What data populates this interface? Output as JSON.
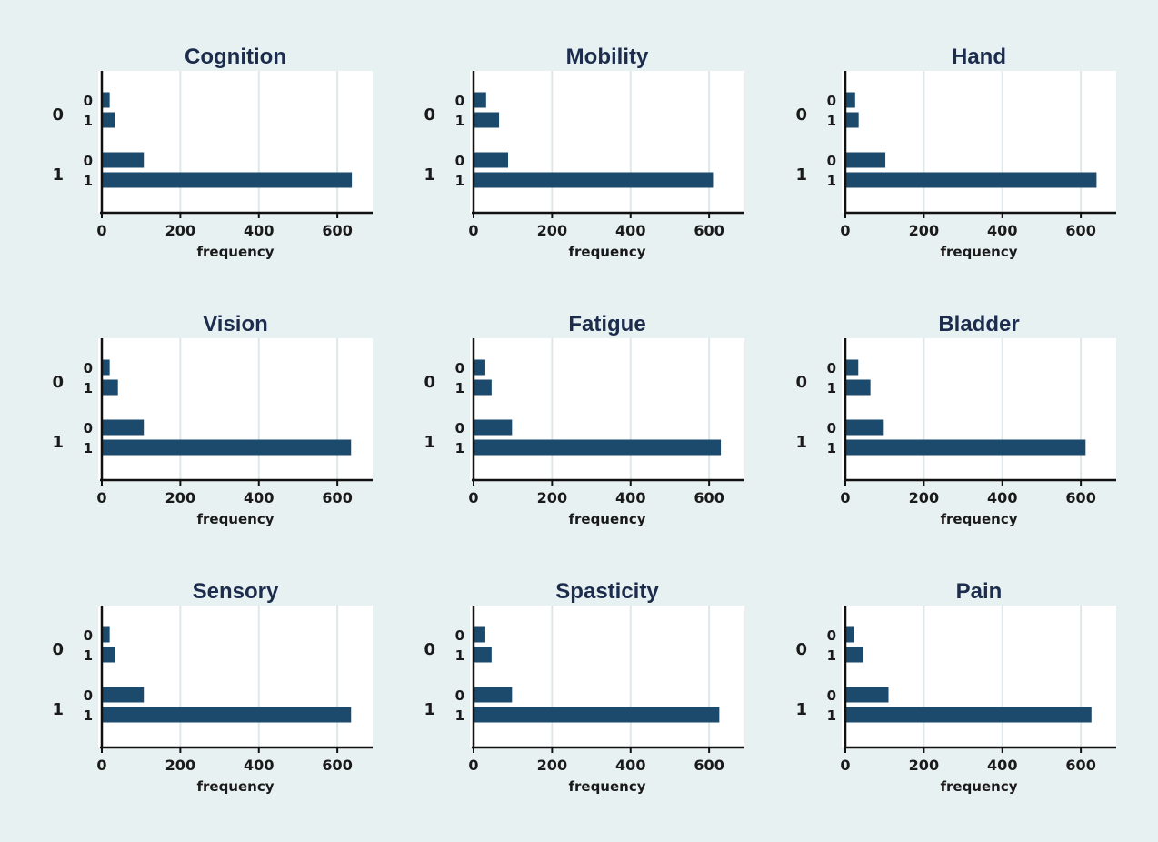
{
  "chart_data": [
    {
      "type": "bar",
      "orientation": "horizontal",
      "title": "Cognition",
      "xlabel": "frequency",
      "xlim": [
        0,
        690
      ],
      "xticks": [
        0,
        200,
        400,
        600
      ],
      "grid": true,
      "groups": [
        {
          "label": "0",
          "bars": [
            {
              "label": "0",
              "value": 20
            },
            {
              "label": "1",
              "value": 33
            }
          ]
        },
        {
          "label": "1",
          "bars": [
            {
              "label": "0",
              "value": 107
            },
            {
              "label": "1",
              "value": 637
            }
          ]
        }
      ]
    },
    {
      "type": "bar",
      "orientation": "horizontal",
      "title": "Mobility",
      "xlabel": "frequency",
      "xlim": [
        0,
        690
      ],
      "xticks": [
        0,
        200,
        400,
        600
      ],
      "grid": true,
      "groups": [
        {
          "label": "0",
          "bars": [
            {
              "label": "0",
              "value": 32
            },
            {
              "label": "1",
              "value": 65
            }
          ]
        },
        {
          "label": "1",
          "bars": [
            {
              "label": "0",
              "value": 88
            },
            {
              "label": "1",
              "value": 610
            }
          ]
        }
      ]
    },
    {
      "type": "bar",
      "orientation": "horizontal",
      "title": "Hand",
      "xlabel": "frequency",
      "xlim": [
        0,
        690
      ],
      "xticks": [
        0,
        200,
        400,
        600
      ],
      "grid": true,
      "groups": [
        {
          "label": "0",
          "bars": [
            {
              "label": "0",
              "value": 25
            },
            {
              "label": "1",
              "value": 34
            }
          ]
        },
        {
          "label": "1",
          "bars": [
            {
              "label": "0",
              "value": 102
            },
            {
              "label": "1",
              "value": 640
            }
          ]
        }
      ]
    },
    {
      "type": "bar",
      "orientation": "horizontal",
      "title": "Vision",
      "xlabel": "frequency",
      "xlim": [
        0,
        690
      ],
      "xticks": [
        0,
        200,
        400,
        600
      ],
      "grid": true,
      "groups": [
        {
          "label": "0",
          "bars": [
            {
              "label": "0",
              "value": 20
            },
            {
              "label": "1",
              "value": 41
            }
          ]
        },
        {
          "label": "1",
          "bars": [
            {
              "label": "0",
              "value": 107
            },
            {
              "label": "1",
              "value": 635
            }
          ]
        }
      ]
    },
    {
      "type": "bar",
      "orientation": "horizontal",
      "title": "Fatigue",
      "xlabel": "frequency",
      "xlim": [
        0,
        690
      ],
      "xticks": [
        0,
        200,
        400,
        600
      ],
      "grid": true,
      "groups": [
        {
          "label": "0",
          "bars": [
            {
              "label": "0",
              "value": 30
            },
            {
              "label": "1",
              "value": 46
            }
          ]
        },
        {
          "label": "1",
          "bars": [
            {
              "label": "0",
              "value": 98
            },
            {
              "label": "1",
              "value": 630
            }
          ]
        }
      ]
    },
    {
      "type": "bar",
      "orientation": "horizontal",
      "title": "Bladder",
      "xlabel": "frequency",
      "xlim": [
        0,
        690
      ],
      "xticks": [
        0,
        200,
        400,
        600
      ],
      "grid": true,
      "groups": [
        {
          "label": "0",
          "bars": [
            {
              "label": "0",
              "value": 33
            },
            {
              "label": "1",
              "value": 64
            }
          ]
        },
        {
          "label": "1",
          "bars": [
            {
              "label": "0",
              "value": 98
            },
            {
              "label": "1",
              "value": 612
            }
          ]
        }
      ]
    },
    {
      "type": "bar",
      "orientation": "horizontal",
      "title": "Sensory",
      "xlabel": "frequency",
      "xlim": [
        0,
        690
      ],
      "xticks": [
        0,
        200,
        400,
        600
      ],
      "grid": true,
      "groups": [
        {
          "label": "0",
          "bars": [
            {
              "label": "0",
              "value": 20
            },
            {
              "label": "1",
              "value": 34
            }
          ]
        },
        {
          "label": "1",
          "bars": [
            {
              "label": "0",
              "value": 107
            },
            {
              "label": "1",
              "value": 635
            }
          ]
        }
      ]
    },
    {
      "type": "bar",
      "orientation": "horizontal",
      "title": "Spasticity",
      "xlabel": "frequency",
      "xlim": [
        0,
        690
      ],
      "xticks": [
        0,
        200,
        400,
        600
      ],
      "grid": true,
      "groups": [
        {
          "label": "0",
          "bars": [
            {
              "label": "0",
              "value": 30
            },
            {
              "label": "1",
              "value": 46
            }
          ]
        },
        {
          "label": "1",
          "bars": [
            {
              "label": "0",
              "value": 98
            },
            {
              "label": "1",
              "value": 626
            }
          ]
        }
      ]
    },
    {
      "type": "bar",
      "orientation": "horizontal",
      "title": "Pain",
      "xlabel": "frequency",
      "xlim": [
        0,
        690
      ],
      "xticks": [
        0,
        200,
        400,
        600
      ],
      "grid": true,
      "groups": [
        {
          "label": "0",
          "bars": [
            {
              "label": "0",
              "value": 22
            },
            {
              "label": "1",
              "value": 44
            }
          ]
        },
        {
          "label": "1",
          "bars": [
            {
              "label": "0",
              "value": 110
            },
            {
              "label": "1",
              "value": 627
            }
          ]
        }
      ]
    }
  ],
  "colors": {
    "background": "#e8f1f2",
    "plot_background": "#ffffff",
    "bar": "#1b4a6d",
    "grid": "#dde8ea",
    "axis": "#111111",
    "title": "#1c2c4d"
  }
}
